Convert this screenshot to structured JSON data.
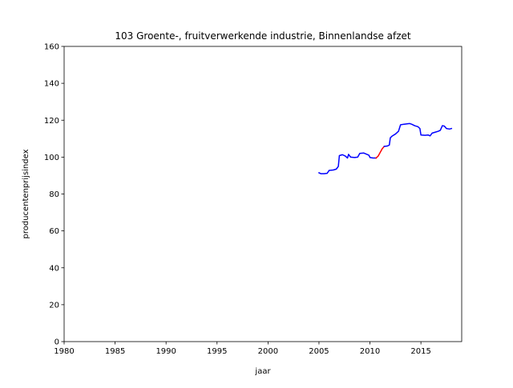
{
  "chart_data": {
    "type": "line",
    "title": "103 Groente-, fruitverwerkende industrie, Binnenlandse afzet",
    "xlabel": "jaar",
    "ylabel": "producentenprijsindex",
    "xlim": [
      1980,
      2019
    ],
    "ylim": [
      0,
      160
    ],
    "x_ticks": [
      "1980",
      "1985",
      "1990",
      "1995",
      "2000",
      "2005",
      "2010",
      "2015"
    ],
    "y_ticks": [
      "0",
      "20",
      "40",
      "60",
      "80",
      "100",
      "120",
      "140",
      "160"
    ],
    "grid": false,
    "legend": "none",
    "series": [
      {
        "color": "#0000ff",
        "points": [
          [
            2005.0,
            91.5
          ],
          [
            2005.2,
            91.0
          ],
          [
            2005.5,
            91.0
          ],
          [
            2005.8,
            91.2
          ],
          [
            2006.0,
            92.8
          ],
          [
            2006.4,
            93.0
          ],
          [
            2006.7,
            93.5
          ],
          [
            2006.9,
            95.0
          ],
          [
            2007.0,
            100.8
          ],
          [
            2007.3,
            101.3
          ],
          [
            2007.6,
            100.5
          ],
          [
            2007.8,
            99.5
          ],
          [
            2007.9,
            101.5
          ],
          [
            2008.1,
            100.0
          ],
          [
            2008.5,
            99.8
          ],
          [
            2008.8,
            100.0
          ],
          [
            2009.0,
            102.0
          ],
          [
            2009.4,
            102.2
          ],
          [
            2009.7,
            101.5
          ],
          [
            2009.9,
            101.0
          ],
          [
            2010.0,
            99.8
          ],
          [
            2010.3,
            99.5
          ],
          [
            2010.6,
            99.5
          ]
        ]
      },
      {
        "color": "#ff0000",
        "points": [
          [
            2010.6,
            99.5
          ],
          [
            2010.8,
            100.5
          ],
          [
            2011.0,
            102.5
          ],
          [
            2011.2,
            104.5
          ],
          [
            2011.4,
            105.8
          ]
        ]
      },
      {
        "color": "#0000ff",
        "points": [
          [
            2011.4,
            105.8
          ],
          [
            2011.7,
            106.0
          ],
          [
            2011.9,
            106.5
          ],
          [
            2012.0,
            110.5
          ],
          [
            2012.2,
            111.5
          ],
          [
            2012.5,
            112.5
          ],
          [
            2012.8,
            114.0
          ],
          [
            2013.0,
            117.5
          ],
          [
            2013.3,
            117.8
          ],
          [
            2013.6,
            118.0
          ],
          [
            2013.9,
            118.2
          ],
          [
            2014.1,
            117.8
          ],
          [
            2014.4,
            117.0
          ],
          [
            2014.7,
            116.5
          ],
          [
            2014.9,
            115.5
          ],
          [
            2015.0,
            112.0
          ],
          [
            2015.4,
            111.8
          ],
          [
            2015.7,
            112.0
          ],
          [
            2015.9,
            111.5
          ],
          [
            2016.1,
            113.0
          ],
          [
            2016.4,
            113.5
          ],
          [
            2016.7,
            114.0
          ],
          [
            2016.9,
            114.5
          ],
          [
            2017.1,
            117.0
          ],
          [
            2017.3,
            116.8
          ],
          [
            2017.5,
            115.5
          ],
          [
            2017.8,
            115.2
          ],
          [
            2018.0,
            115.5
          ]
        ]
      }
    ]
  }
}
